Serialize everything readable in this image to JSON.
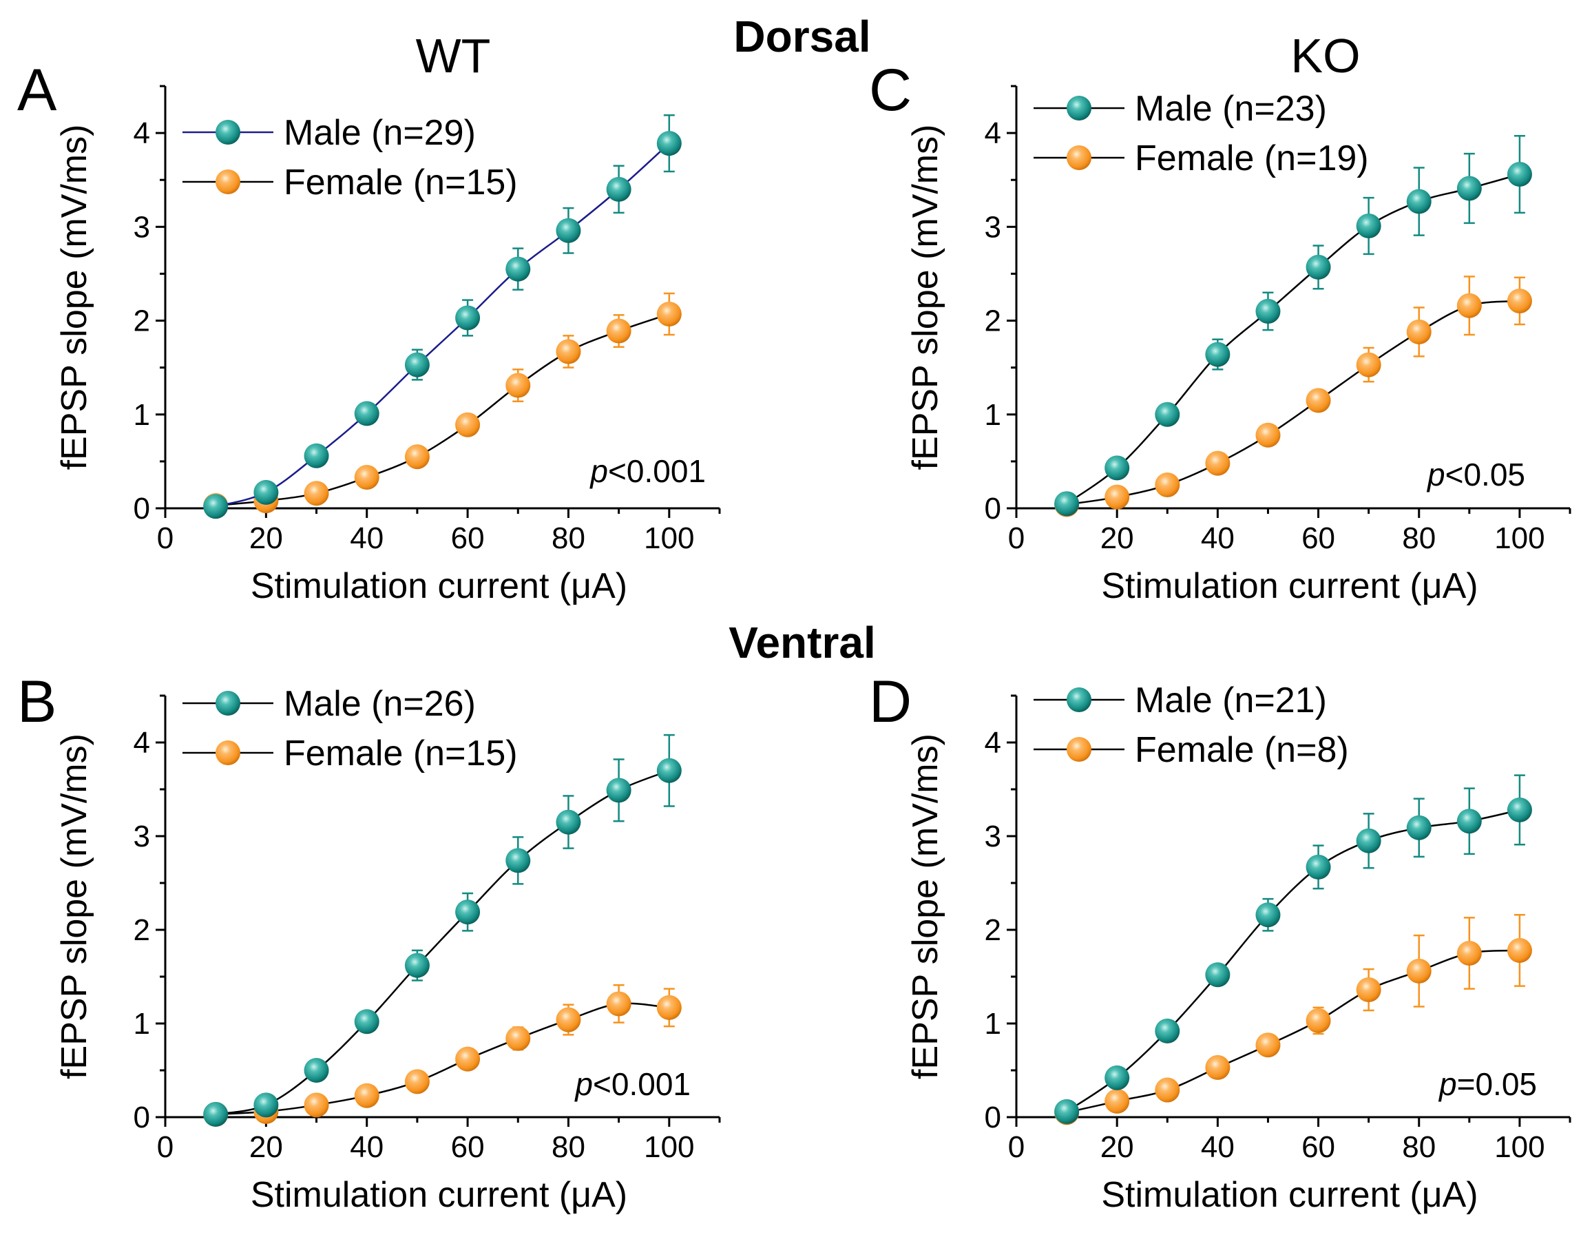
{
  "figure": {
    "column_titles": {
      "left": "WT",
      "right": "KO"
    },
    "row_titles": {
      "top": "Dorsal",
      "bottom": "Ventral"
    }
  },
  "colors": {
    "male": "#138a82",
    "male_highlight": "#cdf3ee",
    "female": "#f7931e",
    "female_highlight": "#fff1d6",
    "line_default": "#000000",
    "line_wt_dorsal_male": "#1c1c8c"
  },
  "chart_data": [
    {
      "id": "A",
      "panel_letter": "A",
      "type": "line",
      "xlabel": "Stimulation current (μA)",
      "ylabel": "fEPSP slope (mV/ms)",
      "xlim": [
        0,
        110
      ],
      "ylim": [
        0,
        4.5
      ],
      "xticks": [
        0,
        20,
        40,
        60,
        80,
        100
      ],
      "yticks": [
        0,
        1,
        2,
        3,
        4
      ],
      "annotation": {
        "italic": "p",
        "rest": "<0.001"
      },
      "legend_position": "top-left",
      "x": [
        10,
        20,
        30,
        40,
        50,
        60,
        70,
        80,
        90,
        100
      ],
      "series": [
        {
          "name": "Male (n=29)",
          "group": "male",
          "values": [
            0.02,
            0.17,
            0.56,
            1.01,
            1.53,
            2.03,
            2.55,
            2.96,
            3.4,
            3.89
          ],
          "errors": [
            0.02,
            0.03,
            0.06,
            0.08,
            0.16,
            0.19,
            0.22,
            0.24,
            0.25,
            0.3
          ]
        },
        {
          "name": "Female (n=15)",
          "group": "female",
          "values": [
            0.03,
            0.08,
            0.16,
            0.33,
            0.55,
            0.89,
            1.31,
            1.67,
            1.89,
            2.07
          ],
          "errors": [
            0.01,
            0.02,
            0.04,
            0.04,
            0.06,
            0.1,
            0.17,
            0.17,
            0.17,
            0.22
          ]
        }
      ]
    },
    {
      "id": "B",
      "panel_letter": "B",
      "type": "line",
      "xlabel": "Stimulation current (μA)",
      "ylabel": "fEPSP slope (mV/ms)",
      "xlim": [
        0,
        110
      ],
      "ylim": [
        0,
        4.5
      ],
      "xticks": [
        0,
        20,
        40,
        60,
        80,
        100
      ],
      "yticks": [
        0,
        1,
        2,
        3,
        4
      ],
      "annotation": {
        "italic": "p",
        "rest": "<0.001"
      },
      "legend_position": "top-left",
      "x": [
        10,
        20,
        30,
        40,
        50,
        60,
        70,
        80,
        90,
        100
      ],
      "series": [
        {
          "name": "Male (n=26)",
          "group": "male",
          "values": [
            0.03,
            0.13,
            0.5,
            1.02,
            1.62,
            2.19,
            2.74,
            3.15,
            3.49,
            3.7
          ],
          "errors": [
            0.02,
            0.03,
            0.05,
            0.08,
            0.16,
            0.2,
            0.25,
            0.28,
            0.33,
            0.38
          ]
        },
        {
          "name": "Female (n=15)",
          "group": "female",
          "values": [
            0.03,
            0.06,
            0.13,
            0.23,
            0.38,
            0.62,
            0.84,
            1.04,
            1.21,
            1.17
          ],
          "errors": [
            0.01,
            0.02,
            0.03,
            0.04,
            0.06,
            0.08,
            0.12,
            0.16,
            0.2,
            0.2
          ]
        }
      ]
    },
    {
      "id": "C",
      "panel_letter": "C",
      "type": "line",
      "xlabel": "Stimulation current (μA)",
      "ylabel": "fEPSP slope (mV/ms)",
      "xlim": [
        0,
        110
      ],
      "ylim": [
        0,
        4.5
      ],
      "xticks": [
        0,
        20,
        40,
        60,
        80,
        100
      ],
      "yticks": [
        0,
        1,
        2,
        3,
        4
      ],
      "annotation": {
        "italic": "p",
        "rest": "<0.05"
      },
      "legend_position": "top-left",
      "x": [
        10,
        20,
        30,
        40,
        50,
        60,
        70,
        80,
        90,
        100
      ],
      "series": [
        {
          "name": "Male (n=23)",
          "group": "male",
          "values": [
            0.05,
            0.43,
            1.0,
            1.64,
            2.1,
            2.57,
            3.01,
            3.27,
            3.41,
            3.56
          ],
          "errors": [
            0.03,
            0.04,
            0.06,
            0.16,
            0.2,
            0.23,
            0.3,
            0.36,
            0.37,
            0.41
          ]
        },
        {
          "name": "Female (n=19)",
          "group": "female",
          "values": [
            0.04,
            0.12,
            0.25,
            0.48,
            0.78,
            1.15,
            1.53,
            1.88,
            2.16,
            2.21
          ],
          "errors": [
            0.02,
            0.02,
            0.04,
            0.04,
            0.06,
            0.08,
            0.18,
            0.26,
            0.31,
            0.25
          ]
        }
      ]
    },
    {
      "id": "D",
      "panel_letter": "D",
      "type": "line",
      "xlabel": "Stimulation current (μA)",
      "ylabel": "fEPSP slope (mV/ms)",
      "xlim": [
        0,
        110
      ],
      "ylim": [
        0,
        4.5
      ],
      "xticks": [
        0,
        20,
        40,
        60,
        80,
        100
      ],
      "yticks": [
        0,
        1,
        2,
        3,
        4
      ],
      "annotation": {
        "italic": "p",
        "rest": "=0.05"
      },
      "legend_position": "top-left",
      "x": [
        10,
        20,
        30,
        40,
        50,
        60,
        70,
        80,
        90,
        100
      ],
      "series": [
        {
          "name": "Male (n=21)",
          "group": "male",
          "values": [
            0.06,
            0.42,
            0.92,
            1.52,
            2.16,
            2.67,
            2.95,
            3.09,
            3.16,
            3.28
          ],
          "errors": [
            0.03,
            0.04,
            0.06,
            0.08,
            0.17,
            0.23,
            0.29,
            0.31,
            0.35,
            0.37
          ]
        },
        {
          "name": "Female (n=8)",
          "group": "female",
          "values": [
            0.05,
            0.17,
            0.29,
            0.53,
            0.77,
            1.03,
            1.36,
            1.56,
            1.75,
            1.78
          ],
          "errors": [
            0.01,
            0.02,
            0.04,
            0.06,
            0.08,
            0.14,
            0.22,
            0.38,
            0.38,
            0.38
          ]
        }
      ]
    }
  ]
}
